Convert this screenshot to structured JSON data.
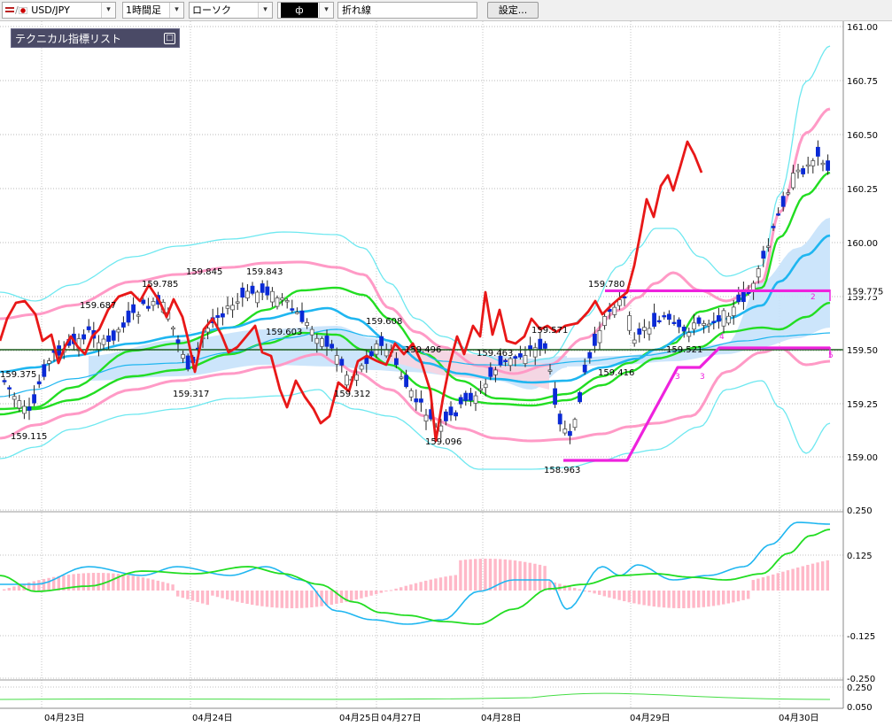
{
  "toolbar": {
    "symbol": "USD/JPY",
    "timeframe": "1時間足",
    "chart_style": "ローソク",
    "indicator_select": "ф",
    "line_type": "折れ線",
    "settings_label": "設定..."
  },
  "indicator_panel": {
    "label": "テクニカル指標リスト",
    "toggle_icon": "□"
  },
  "colors": {
    "bull": "#ff9aa8",
    "bear": "#0a2ad6",
    "bb_outer": "#6ee8f0",
    "bb_inner": "#ff9ac6",
    "bb_mid_green": "#22dd22",
    "ma_blue": "#1fb6f0",
    "red_line": "#e81818",
    "magenta": "#ee22dd",
    "cloud_blue": "#c6e2fb",
    "cloud_pink": "#f8d4e0",
    "hline": "#1a5a1a"
  },
  "price_axis": [
    "161.00",
    "160.75",
    "160.50",
    "160.25",
    "160.00",
    "159.75",
    "159.50",
    "159.25",
    "159.00"
  ],
  "price_markers": [
    "159.775",
    "159.50"
  ],
  "osc_axis": [
    "0.250",
    "0.125",
    "-0.125",
    "-0.250"
  ],
  "bottom_axis": [
    "0.250",
    "0.050"
  ],
  "date_labels": [
    "04月23日",
    "04月24日",
    "04月25日",
    "04月27日",
    "04月28日",
    "04月29日",
    "04月30日"
  ],
  "zigzag_numbers": [
    "2",
    "4",
    "3",
    "3",
    "5"
  ],
  "chart_data": {
    "type": "candlestick",
    "timeframe": "1H",
    "ylim": [
      158.88,
      161.02
    ],
    "annotations": [
      {
        "text": "159.375",
        "price": 159.375
      },
      {
        "text": "159.115",
        "price": 159.115
      },
      {
        "text": "159.687",
        "price": 159.687
      },
      {
        "text": "159.785",
        "price": 159.785
      },
      {
        "text": "159.845",
        "price": 159.845
      },
      {
        "text": "159.843",
        "price": 159.843
      },
      {
        "text": "159.317",
        "price": 159.317
      },
      {
        "text": "159.603",
        "price": 159.603
      },
      {
        "text": "159.312",
        "price": 159.312
      },
      {
        "text": "159.608",
        "price": 159.608
      },
      {
        "text": "159.496",
        "price": 159.496
      },
      {
        "text": "159.096",
        "price": 159.096
      },
      {
        "text": "159.463",
        "price": 159.463
      },
      {
        "text": "159.571",
        "price": 159.571
      },
      {
        "text": "158.963",
        "price": 158.963
      },
      {
        "text": "159.780",
        "price": 159.78
      },
      {
        "text": "159.416",
        "price": 159.416
      },
      {
        "text": "159.521",
        "price": 159.521
      }
    ],
    "horizontal_line": 159.5,
    "resistance_line": 159.775,
    "support_line_level": 159.52,
    "zigzag_start_level": 158.98
  }
}
